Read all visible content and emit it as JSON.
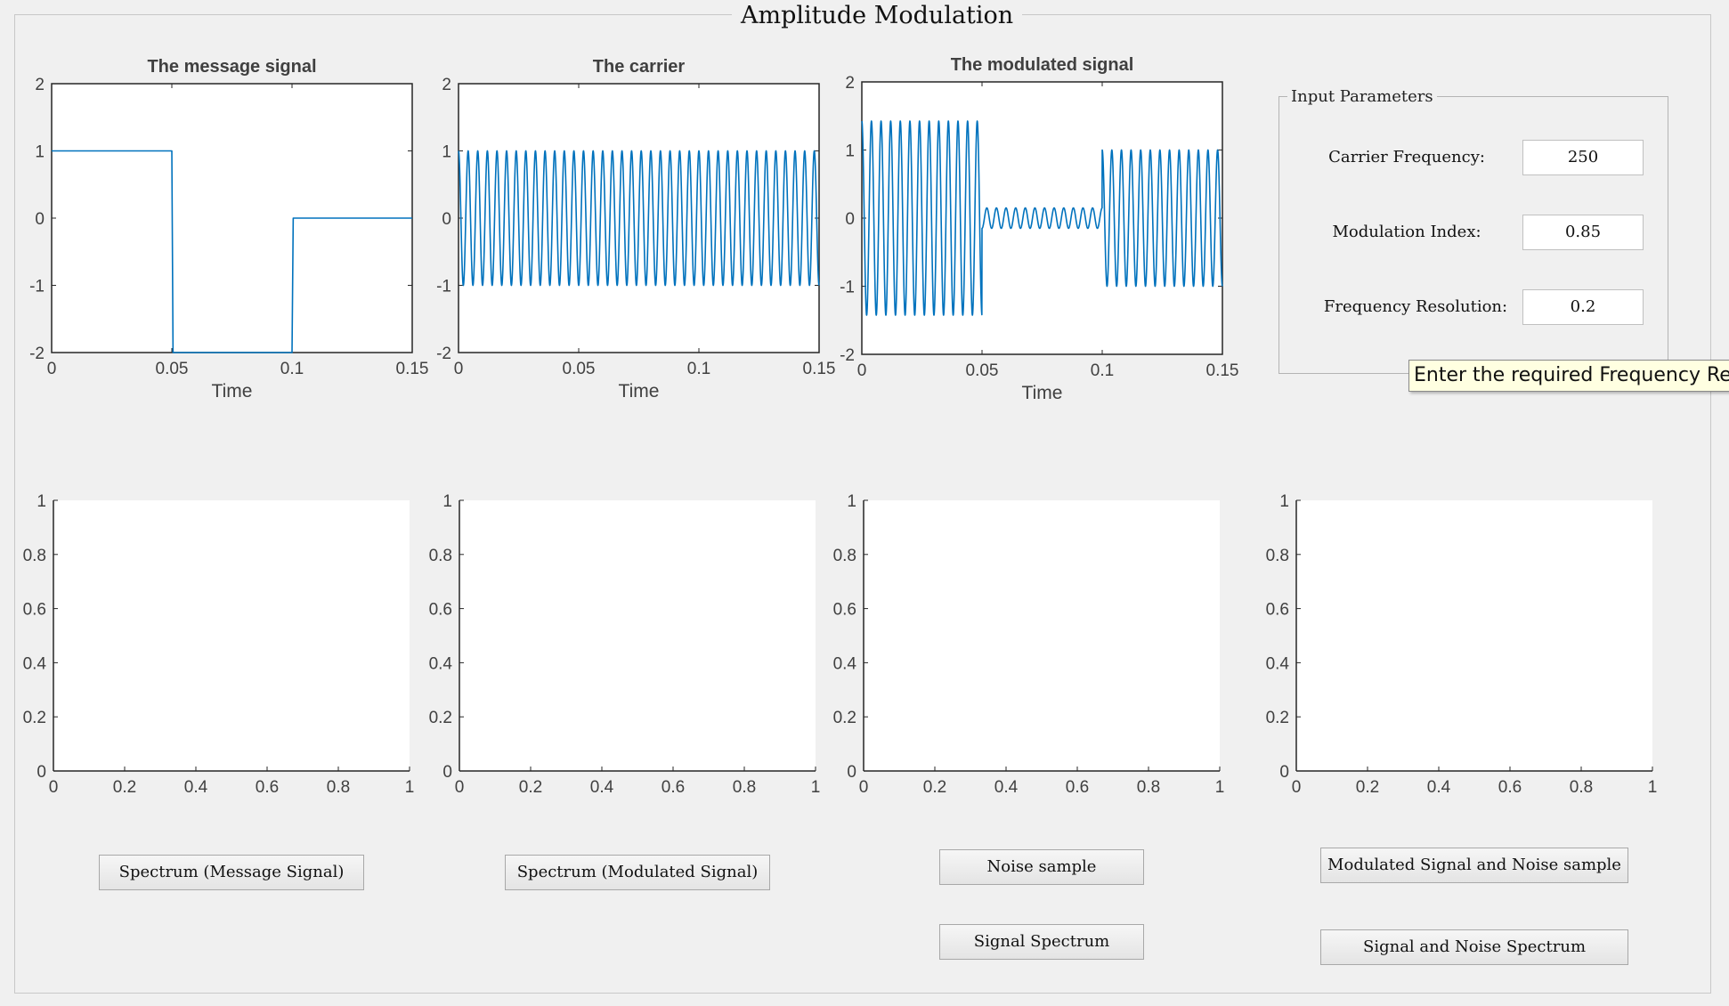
{
  "window_title": "Amplitude Modulation",
  "input_panel": {
    "title": "Input Parameters",
    "params": [
      {
        "label": "Carrier Frequency:",
        "value": "250"
      },
      {
        "label": "Modulation Index:",
        "value": "0.85"
      },
      {
        "label": "Frequency Resolution:",
        "value": "0.2"
      }
    ]
  },
  "tooltip": "Enter the required Frequency Resolution",
  "buttons": {
    "spectrum_message": "Spectrum (Message Signal)",
    "spectrum_modulated": "Spectrum (Modulated Signal)",
    "noise_sample": "Noise sample",
    "signal_spectrum": "Signal Spectrum",
    "modulated_and_noise": "Modulated Signal and Noise sample",
    "signal_and_noise_spectrum": "Signal and Noise Spectrum"
  },
  "colors": {
    "line": "#0072bd",
    "axis": "#262626",
    "background": "#f0f0f0",
    "tooltip_bg": "#ffffe1"
  },
  "chart_data": [
    {
      "type": "line",
      "title": "The message signal",
      "xlabel": "Time",
      "ylabel": "",
      "xlim": [
        0,
        0.15
      ],
      "ylim": [
        -2,
        2
      ],
      "xticks": [
        0,
        0.05,
        0.1,
        0.15
      ],
      "yticks": [
        -2,
        -1,
        0,
        1,
        2
      ],
      "xtick_labels": [
        "0",
        "0.05",
        "0.1",
        "0.15"
      ],
      "ytick_labels": [
        "-2",
        "-1",
        "0",
        "1",
        "2"
      ],
      "series": [
        {
          "x": [
            0,
            0.05,
            0.0505,
            0.1,
            0.1005,
            0.15
          ],
          "y": [
            1,
            1,
            -2,
            -2,
            0,
            0
          ]
        }
      ]
    },
    {
      "type": "line",
      "title": "The carrier",
      "xlabel": "Time",
      "ylabel": "",
      "xlim": [
        0,
        0.15
      ],
      "ylim": [
        -2,
        2
      ],
      "xticks": [
        0,
        0.05,
        0.1,
        0.15
      ],
      "yticks": [
        -2,
        -1,
        0,
        1,
        2
      ],
      "xtick_labels": [
        "0",
        "0.05",
        "0.1",
        "0.15"
      ],
      "ytick_labels": [
        "-2",
        "-1",
        "0",
        "1",
        "2"
      ],
      "carrier": {
        "frequency": 250,
        "amplitude": 1
      }
    },
    {
      "type": "line",
      "title": "The modulated signal",
      "xlabel": "Time",
      "ylabel": "",
      "xlim": [
        0,
        0.15
      ],
      "ylim": [
        -2,
        2
      ],
      "xticks": [
        0,
        0.05,
        0.1,
        0.15
      ],
      "yticks": [
        -2,
        -1,
        0,
        1,
        2
      ],
      "xtick_labels": [
        "0",
        "0.05",
        "0.1",
        "0.15"
      ],
      "ytick_labels": [
        "-2",
        "-1",
        "0",
        "1",
        "2"
      ],
      "carrier": {
        "frequency": 250,
        "amplitude": 1
      },
      "envelope": [
        {
          "x0": 0,
          "x1": 0.05,
          "amplitude": 1.425
        },
        {
          "x0": 0.05,
          "x1": 0.1,
          "amplitude": 0.15
        },
        {
          "x0": 0.1,
          "x1": 0.15,
          "amplitude": 1
        }
      ]
    },
    {
      "type": "line",
      "title": "",
      "xlim": [
        0,
        1
      ],
      "ylim": [
        0,
        1
      ],
      "xtick_labels": [
        "0",
        "0.2",
        "0.4",
        "0.6",
        "0.8",
        "1"
      ],
      "ytick_labels": [
        "0",
        "0.2",
        "0.4",
        "0.6",
        "0.8",
        "1"
      ]
    },
    {
      "type": "line",
      "title": "",
      "xlim": [
        0,
        1
      ],
      "ylim": [
        0,
        1
      ],
      "xtick_labels": [
        "0",
        "0.2",
        "0.4",
        "0.6",
        "0.8",
        "1"
      ],
      "ytick_labels": [
        "0",
        "0.2",
        "0.4",
        "0.6",
        "0.8",
        "1"
      ]
    },
    {
      "type": "line",
      "title": "",
      "xlim": [
        0,
        1
      ],
      "ylim": [
        0,
        1
      ],
      "xtick_labels": [
        "0",
        "0.2",
        "0.4",
        "0.6",
        "0.8",
        "1"
      ],
      "ytick_labels": [
        "0",
        "0.2",
        "0.4",
        "0.6",
        "0.8",
        "1"
      ]
    },
    {
      "type": "line",
      "title": "",
      "xlim": [
        0,
        1
      ],
      "ylim": [
        0,
        1
      ],
      "xtick_labels": [
        "0",
        "0.2",
        "0.4",
        "0.6",
        "0.8",
        "1"
      ],
      "ytick_labels": [
        "0",
        "0.2",
        "0.4",
        "0.6",
        "0.8",
        "1"
      ]
    }
  ]
}
